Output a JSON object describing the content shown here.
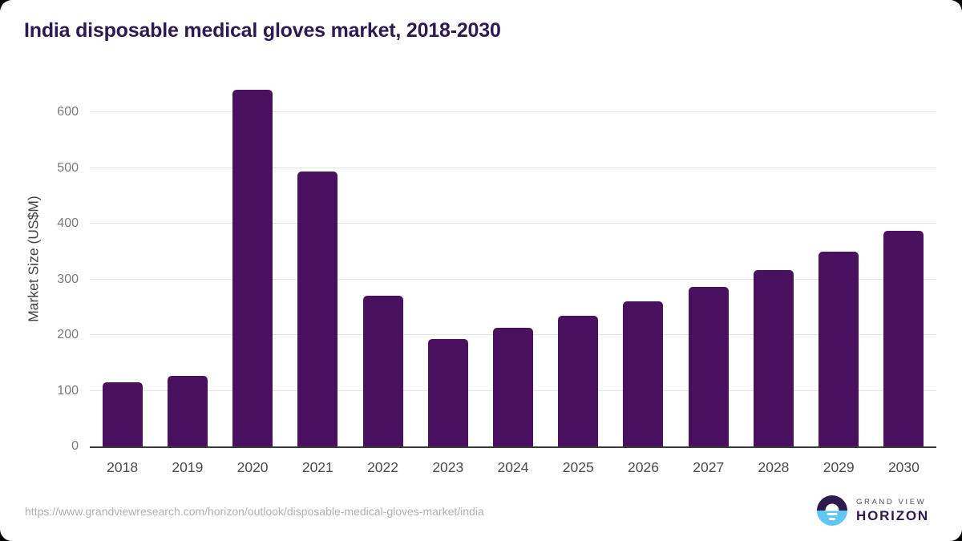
{
  "window": {
    "background": "#000000",
    "card_background": "#ffffff"
  },
  "header": {
    "title": "India disposable medical gloves market, 2018-2030",
    "title_color": "#2e1a4f"
  },
  "chart_data": {
    "type": "bar",
    "title": "India disposable medical gloves market, 2018-2030",
    "xlabel": "",
    "ylabel": "Market Size (US$M)",
    "categories": [
      "2018",
      "2019",
      "2020",
      "2021",
      "2022",
      "2023",
      "2024",
      "2025",
      "2026",
      "2027",
      "2028",
      "2029",
      "2030"
    ],
    "values": [
      115,
      127,
      641,
      494,
      270,
      193,
      213,
      235,
      260,
      287,
      317,
      350,
      387
    ],
    "ylim": [
      0,
      672
    ],
    "yticks": [
      0,
      100,
      200,
      300,
      400,
      500,
      600
    ],
    "grid": true,
    "legend_position": "none",
    "bar_color": "#4a1160",
    "gridline_color": "#e4e4e4",
    "axis_line_color": "#3a3a3a",
    "ytick_color": "#7a7a7a",
    "xtick_color": "#4a4a4a"
  },
  "footer": {
    "source_url": "https://www.grandviewresearch.com/horizon/outlook/disposable-medical-gloves-market/india",
    "logo": {
      "line1": "GRAND VIEW",
      "line2": "HORIZON",
      "icon_top_color": "#2d1b4e",
      "icon_bottom_color": "#5ec8f2"
    }
  }
}
